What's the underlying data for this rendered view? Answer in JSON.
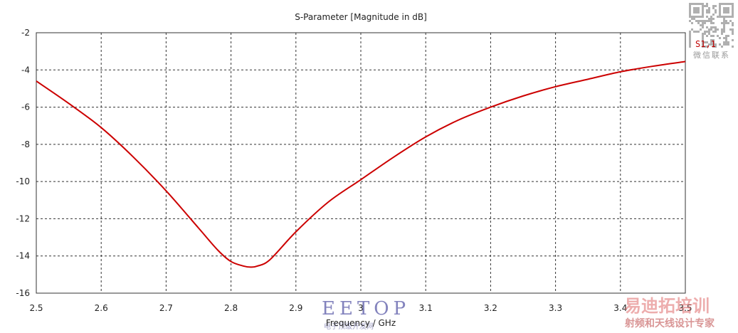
{
  "chart_data": {
    "type": "line",
    "title": "S-Parameter [Magnitude in dB]",
    "xlabel": "Frequency / GHz",
    "ylabel": "",
    "xlim": [
      2.5,
      3.5
    ],
    "ylim": [
      -16,
      -2
    ],
    "xticks": [
      2.5,
      2.6,
      2.7,
      2.8,
      2.9,
      3,
      3.1,
      3.2,
      3.3,
      3.4,
      3.5
    ],
    "yticks": [
      -2,
      -4,
      -6,
      -8,
      -10,
      -12,
      -14,
      -16
    ],
    "grid": true,
    "grid_style": "dashed",
    "legend_position": "top-right",
    "series": [
      {
        "name": "S1,1",
        "color": "#cc0000",
        "x": [
          2.5,
          2.55,
          2.6,
          2.65,
          2.7,
          2.75,
          2.78,
          2.8,
          2.82,
          2.83,
          2.84,
          2.86,
          2.9,
          2.95,
          3.0,
          3.05,
          3.1,
          3.15,
          3.2,
          3.25,
          3.3,
          3.35,
          3.4,
          3.45,
          3.5
        ],
        "y": [
          -4.6,
          -5.8,
          -7.1,
          -8.7,
          -10.5,
          -12.5,
          -13.7,
          -14.3,
          -14.55,
          -14.6,
          -14.55,
          -14.2,
          -12.7,
          -11.1,
          -9.9,
          -8.7,
          -7.6,
          -6.7,
          -6.0,
          -5.4,
          -4.9,
          -4.5,
          -4.1,
          -3.8,
          -3.55
        ]
      }
    ]
  },
  "watermarks": {
    "eetop": "EETOP",
    "eetop_sub": "电子顶级开发网",
    "training": "易迪拓培训",
    "training_sub": "射频和天线设计专家",
    "qr_label": "微信联系",
    "qr_icon": "qr-code-icon"
  }
}
